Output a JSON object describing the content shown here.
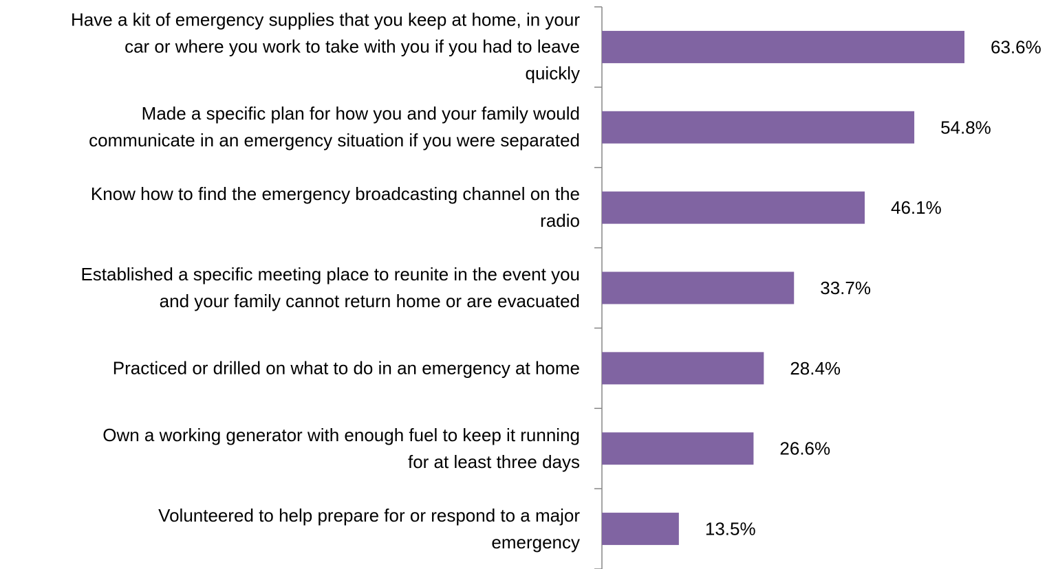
{
  "chart_data": {
    "type": "bar",
    "orientation": "horizontal",
    "title": "",
    "xlabel": "",
    "ylabel": "",
    "xlim": [
      0,
      100
    ],
    "grid": false,
    "legend": "none",
    "bar_color": "#8064A2",
    "axis_color": "#868686",
    "categories": [
      {
        "label": "Have a kit of emergency supplies that you keep at home, in your car or where you work to take with you if you had to leave quickly",
        "lines": [
          "Have a kit of emergency supplies that you keep at home, in your",
          "car or where you work to take with you if you had to leave",
          "quickly"
        ]
      },
      {
        "label": "Made a specific plan for how you and your family would communicate in an emergency situation if you were separated",
        "lines": [
          "Made a specific plan for how you and your family would",
          "communicate in an emergency situation if you were separated"
        ]
      },
      {
        "label": "Know how to find the emergency broadcasting channel on the radio",
        "lines": [
          "Know how to find the emergency broadcasting channel on the",
          "radio"
        ]
      },
      {
        "label": "Established a specific meeting place to reunite in the event you and your family cannot return home or are evacuated",
        "lines": [
          "Established a specific meeting place to reunite in the event you",
          "and your family cannot return home or are evacuated"
        ]
      },
      {
        "label": "Practiced or drilled on what to do in an emergency at home",
        "lines": [
          "Practiced or drilled on what to do in an emergency at home"
        ]
      },
      {
        "label": "Own a working generator with enough fuel to keep it running for at least three days",
        "lines": [
          "Own a working generator with enough fuel to keep it running",
          "for at least three days"
        ]
      },
      {
        "label": "Volunteered to help prepare for or respond to a major emergency",
        "lines": [
          "Volunteered to help prepare for or respond to a major",
          "emergency"
        ]
      }
    ],
    "values": [
      63.6,
      54.8,
      46.1,
      33.7,
      28.4,
      26.6,
      13.5
    ],
    "value_labels": [
      "63.6%",
      "54.8%",
      "46.1%",
      "33.7%",
      "28.4%",
      "26.6%",
      "13.5%"
    ]
  }
}
